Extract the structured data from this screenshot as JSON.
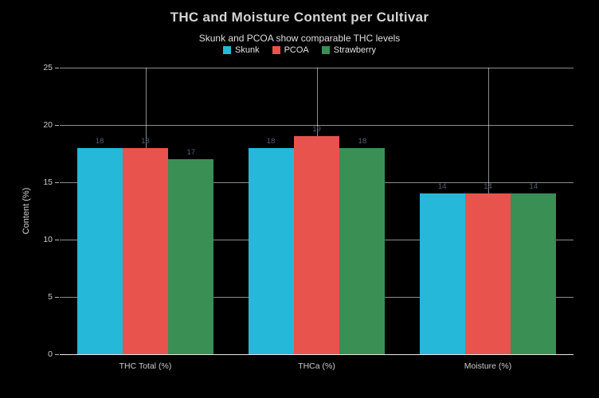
{
  "chart_data": {
    "type": "bar",
    "title": "THC and Moisture Content per Cultivar",
    "subtitle": "Skunk and PCOA show comparable THC levels",
    "categories": [
      "THC Total (%)",
      "THCa (%)",
      "Moisture (%)"
    ],
    "series": [
      {
        "name": "Skunk",
        "color": "#25b8d9",
        "values": [
          18,
          18,
          14
        ]
      },
      {
        "name": "PCOA",
        "color": "#e8534e",
        "values": [
          18,
          19,
          14
        ]
      },
      {
        "name": "Strawberry",
        "color": "#3a8f55",
        "values": [
          17,
          18,
          14
        ]
      }
    ],
    "xlabel": "",
    "ylabel": "Content (%)",
    "ylim": [
      0,
      25
    ],
    "yticks": [
      0,
      5,
      10,
      15,
      20,
      25
    ],
    "grid": true,
    "legend_position": "top",
    "colors": {
      "background": "#000000",
      "text": "#d4d4d4",
      "grid": "#ffffff",
      "bar_label": "#515f72"
    }
  }
}
